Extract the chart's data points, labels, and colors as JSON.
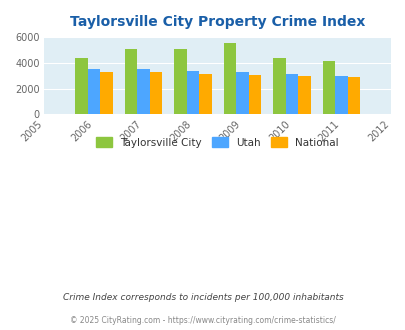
{
  "title": "Taylorsville City Property Crime Index",
  "all_years": [
    2005,
    2006,
    2007,
    2008,
    2009,
    2010,
    2011,
    2012
  ],
  "bar_years": [
    2006,
    2007,
    2008,
    2009,
    2010,
    2011
  ],
  "taylorsville": [
    4350,
    5050,
    5050,
    5550,
    4400,
    4150
  ],
  "utah": [
    3520,
    3520,
    3350,
    3300,
    3150,
    3000
  ],
  "national": [
    3300,
    3280,
    3160,
    3050,
    2960,
    2900
  ],
  "color_taylorsville": "#8dc63f",
  "color_utah": "#4da6ff",
  "color_national": "#ffaa00",
  "ylim": [
    0,
    6000
  ],
  "yticks": [
    0,
    2000,
    4000,
    6000
  ],
  "background_color": "#e0eef5",
  "title_color": "#1a5fa8",
  "legend_labels": [
    "Taylorsville City",
    "Utah",
    "National"
  ],
  "footnote1": "Crime Index corresponds to incidents per 100,000 inhabitants",
  "footnote2": "© 2025 CityRating.com - https://www.cityrating.com/crime-statistics/",
  "bar_width": 0.25
}
